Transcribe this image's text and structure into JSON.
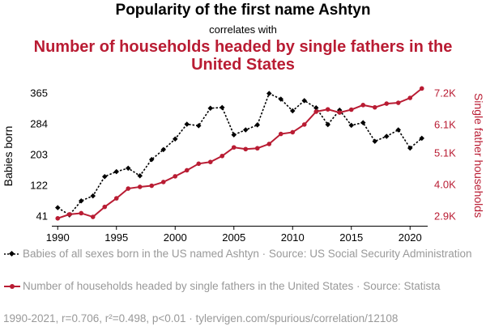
{
  "title": {
    "line1": "Popularity of the first name Ashtyn",
    "line2": "correlates with",
    "line3": "Number of households headed by single fathers in the United States"
  },
  "legend": {
    "series1": "Babies of all sexes born in the US named Ashtyn · Source: US Social Security Administration",
    "series2": "Number of households headed by single fathers in the United States · Source: Statista"
  },
  "footer": "1990-2021, r=0.706, r²=0.498, p<0.01 · tylervigen.com/spurious/correlation/12108",
  "colors": {
    "series1": "#000000",
    "series2": "#b91c33",
    "axis_right": "#b91c33"
  },
  "chart_data": {
    "type": "line",
    "x": [
      1990,
      1991,
      1992,
      1993,
      1994,
      1995,
      1996,
      1997,
      1998,
      1999,
      2000,
      2001,
      2002,
      2003,
      2004,
      2005,
      2006,
      2007,
      2008,
      2009,
      2010,
      2011,
      2012,
      2013,
      2014,
      2015,
      2016,
      2017,
      2018,
      2019,
      2020,
      2021
    ],
    "xlim": [
      1989.5,
      2021.5
    ],
    "xticks": [
      "1990",
      "1995",
      "2000",
      "2005",
      "2010",
      "2015",
      "2020"
    ],
    "series": [
      {
        "name": "Babies of all sexes born in the US named Ashtyn",
        "axis": "left",
        "values": [
          63,
          44,
          81,
          94,
          145,
          158,
          167,
          147,
          190,
          216,
          244,
          283,
          279,
          325,
          327,
          255,
          268,
          281,
          364,
          349,
          318,
          345,
          326,
          282,
          320,
          280,
          287,
          238,
          251,
          268,
          220,
          246
        ]
      },
      {
        "name": "Number of households headed by single fathers in the United States",
        "axis": "right",
        "values": [
          2.82,
          2.96,
          3.0,
          2.87,
          3.22,
          3.52,
          3.86,
          3.92,
          3.96,
          4.09,
          4.29,
          4.5,
          4.73,
          4.79,
          5.0,
          5.3,
          5.24,
          5.27,
          5.42,
          5.77,
          5.83,
          6.1,
          6.55,
          6.63,
          6.52,
          6.62,
          6.78,
          6.7,
          6.83,
          6.86,
          7.03,
          7.36
        ]
      }
    ],
    "ylabel_left": "Babies born",
    "ylabel_right": "Single father households",
    "yticks_left": [
      "41",
      "122",
      "203",
      "284",
      "365"
    ],
    "yticks_right": [
      "2.9K",
      "4.0K",
      "5.1K",
      "6.1K",
      "7.2K"
    ],
    "ylim_left": [
      41,
      365
    ],
    "ylim_right": [
      2.9,
      7.2
    ],
    "grid": false,
    "legend_position": "bottom"
  }
}
